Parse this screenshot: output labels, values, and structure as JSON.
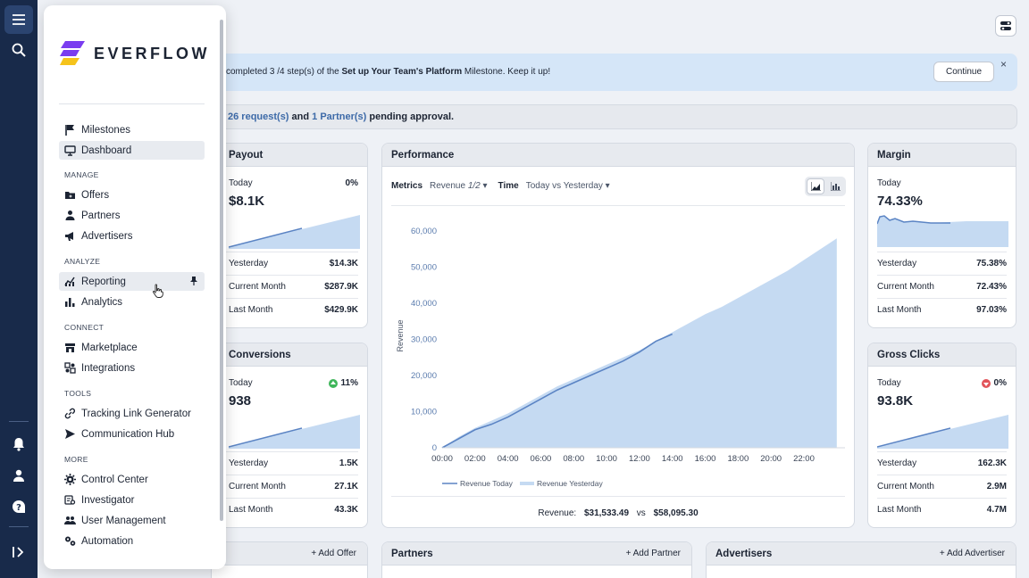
{
  "brand": {
    "name": "EVERFLOW",
    "logo_colors": [
      "#7a3df0",
      "#f5c31b"
    ]
  },
  "colors": {
    "rail": "#182a4a",
    "accent_blue": "#5b84c4",
    "area_fill": "#c5daf2",
    "banner": "#d5e6f8"
  },
  "rail": {
    "icons": [
      "menu-icon",
      "search-icon",
      "bell-icon",
      "user-icon",
      "help-icon",
      "expand-icon"
    ]
  },
  "drawer": {
    "items_top": [
      {
        "label": "Milestones",
        "icon": "flag-icon"
      },
      {
        "label": "Dashboard",
        "icon": "monitor-icon"
      }
    ],
    "sections": [
      {
        "title": "MANAGE",
        "items": [
          {
            "label": "Offers",
            "icon": "folder-icon"
          },
          {
            "label": "Partners",
            "icon": "person-icon"
          },
          {
            "label": "Advertisers",
            "icon": "megaphone-icon"
          }
        ]
      },
      {
        "title": "ANALYZE",
        "items": [
          {
            "label": "Reporting",
            "icon": "reporting-icon"
          },
          {
            "label": "Analytics",
            "icon": "analytics-icon"
          }
        ]
      },
      {
        "title": "CONNECT",
        "items": [
          {
            "label": "Marketplace",
            "icon": "store-icon"
          },
          {
            "label": "Integrations",
            "icon": "integrations-icon"
          }
        ]
      },
      {
        "title": "TOOLS",
        "items": [
          {
            "label": "Tracking Link Generator",
            "icon": "link-icon"
          },
          {
            "label": "Communication Hub",
            "icon": "send-icon"
          }
        ]
      },
      {
        "title": "MORE",
        "items": [
          {
            "label": "Control Center",
            "icon": "gear-icon"
          },
          {
            "label": "Investigator",
            "icon": "investigator-icon"
          },
          {
            "label": "User Management",
            "icon": "users-icon"
          },
          {
            "label": "Automation",
            "icon": "automation-icon"
          }
        ]
      }
    ]
  },
  "banner": {
    "text_pre": "completed 3 /4 step(s) of the ",
    "text_bold": "Set up Your Team's Platform",
    "text_post": " Milestone. Keep it up!",
    "button": "Continue",
    "close": "×"
  },
  "pending": {
    "requests": "26 request(s)",
    "and": " and ",
    "partners": "1 Partner(s)",
    "suffix": " pending approval."
  },
  "payout": {
    "title": "Payout",
    "today_label": "Today",
    "change": "0%",
    "value": "$8.1K",
    "rows": [
      {
        "label": "Yesterday",
        "value": "$14.3K"
      },
      {
        "label": "Current Month",
        "value": "$287.9K"
      },
      {
        "label": "Last Month",
        "value": "$429.9K"
      }
    ]
  },
  "conversions": {
    "title": "Conversions",
    "today_label": "Today",
    "change": "11%",
    "value": "938",
    "rows": [
      {
        "label": "Yesterday",
        "value": "1.5K"
      },
      {
        "label": "Current Month",
        "value": "27.1K"
      },
      {
        "label": "Last Month",
        "value": "43.3K"
      }
    ]
  },
  "margin": {
    "title": "Margin",
    "today_label": "Today",
    "value": "74.33%",
    "rows": [
      {
        "label": "Yesterday",
        "value": "75.38%"
      },
      {
        "label": "Current Month",
        "value": "72.43%"
      },
      {
        "label": "Last Month",
        "value": "97.03%"
      }
    ]
  },
  "gross_clicks": {
    "title": "Gross Clicks",
    "today_label": "Today",
    "change": "0%",
    "value": "93.8K",
    "rows": [
      {
        "label": "Yesterday",
        "value": "162.3K"
      },
      {
        "label": "Current Month",
        "value": "2.9M"
      },
      {
        "label": "Last Month",
        "value": "4.7M"
      }
    ]
  },
  "performance": {
    "title": "Performance",
    "metrics_label": "Metrics",
    "metrics_value": "Revenue",
    "metrics_count": "1/2",
    "time_label": "Time",
    "time_value": "Today vs Yesterday",
    "footer_label": "Revenue:",
    "footer_today": "$31,533.49",
    "footer_vs": "vs",
    "footer_yesterday": "$58,095.30"
  },
  "chart_data": {
    "type": "area",
    "ylabel": "Revenue",
    "ylim": [
      0,
      60000
    ],
    "yticks": [
      "0",
      "10,000",
      "20,000",
      "30,000",
      "40,000",
      "50,000",
      "60,000"
    ],
    "xticks": [
      "00:00",
      "02:00",
      "04:00",
      "06:00",
      "08:00",
      "10:00",
      "12:00",
      "14:00",
      "16:00",
      "18:00",
      "20:00",
      "22:00"
    ],
    "series": [
      {
        "name": "Revenue Today",
        "kind": "line",
        "x": [
          0,
          1,
          2,
          3,
          4,
          5,
          6,
          7,
          8,
          9,
          10,
          11,
          12,
          13,
          14
        ],
        "values": [
          0,
          2500,
          5000,
          6500,
          8500,
          11000,
          13500,
          16000,
          18000,
          20000,
          22000,
          24000,
          26500,
          29500,
          31500
        ]
      },
      {
        "name": "Revenue Yesterday",
        "kind": "area",
        "x": [
          0,
          1,
          2,
          3,
          4,
          5,
          6,
          7,
          8,
          9,
          10,
          11,
          12,
          13,
          14,
          15,
          16,
          17,
          18,
          19,
          20,
          21,
          22,
          23,
          24
        ],
        "values": [
          0,
          3000,
          5500,
          7500,
          9500,
          12000,
          14500,
          17000,
          19000,
          21000,
          23000,
          25000,
          27000,
          29500,
          32000,
          34500,
          37000,
          39000,
          41500,
          44000,
          46500,
          49000,
          52000,
          55000,
          58000
        ]
      }
    ],
    "legend": "bottom"
  },
  "bottom": {
    "offers_add": "+ Add Offer",
    "partners_title": "Partners",
    "partners_add": "+ Add Partner",
    "advertisers_title": "Advertisers",
    "advertisers_add": "+ Add Advertiser"
  }
}
